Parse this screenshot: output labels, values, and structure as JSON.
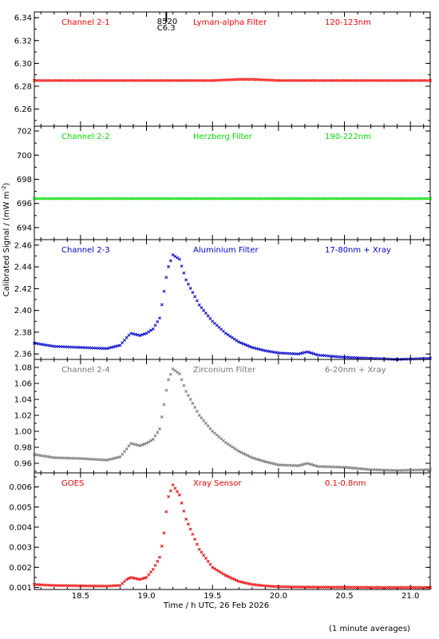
{
  "footnote": "(1 minute averages)",
  "chart_data": [
    {
      "type": "scatter",
      "channel": "Channel 2-1",
      "filter": "Lyman-alpha Filter",
      "band": "120-123nm",
      "color": "#ff0000",
      "ylim": [
        6.245,
        6.345
      ],
      "yticks": [
        6.26,
        6.28,
        6.3,
        6.32,
        6.34
      ],
      "yticklabels": [
        "6.26",
        "6.28",
        "6.30",
        "6.32",
        "6.34"
      ],
      "annotations": [
        {
          "text": "8520",
          "x": 19.08,
          "y": 6.3345
        },
        {
          "text": "C6.3",
          "x": 19.08,
          "y": 6.329
        }
      ],
      "markers": [
        {
          "x": 19.15,
          "y1": 6.345,
          "y2": 6.336
        }
      ],
      "series": [
        {
          "x": [
            18.15,
            18.5,
            19.0,
            19.5,
            19.7,
            19.8,
            20.0,
            20.5,
            21.0,
            21.15
          ],
          "y": [
            6.285,
            6.285,
            6.285,
            6.285,
            6.286,
            6.286,
            6.285,
            6.285,
            6.285,
            6.285
          ]
        }
      ]
    },
    {
      "type": "scatter",
      "channel": "Channel 2-2",
      "filter": "Herzberg Filter",
      "band": "190-222nm",
      "color": "#00dd00",
      "ylim": [
        693,
        702.4
      ],
      "yticks": [
        694,
        696,
        698,
        700,
        702
      ],
      "yticklabels": [
        "694",
        "696",
        "698",
        "700",
        "702"
      ],
      "series": [
        {
          "x": [
            18.15,
            18.5,
            19.0,
            19.5,
            20.0,
            20.5,
            21.0,
            21.15
          ],
          "y": [
            696.4,
            696.4,
            696.4,
            696.4,
            696.4,
            696.4,
            696.4,
            696.4
          ]
        }
      ]
    },
    {
      "type": "scatter",
      "channel": "Channel 2-3",
      "filter": "Aluminium Filter",
      "band": "17-80nm + Xray",
      "color": "#0000cc",
      "ylim": [
        2.355,
        2.465
      ],
      "yticks": [
        2.36,
        2.38,
        2.4,
        2.42,
        2.44,
        2.46
      ],
      "yticklabels": [
        "2.36",
        "2.38",
        "2.40",
        "2.42",
        "2.44",
        "2.46"
      ],
      "series": [
        {
          "x": [
            18.15,
            18.3,
            18.5,
            18.7,
            18.8,
            18.85,
            18.88,
            18.95,
            19.0,
            19.05,
            19.1,
            19.13,
            19.16,
            19.2,
            19.25,
            19.3,
            19.4,
            19.5,
            19.6,
            19.7,
            19.8,
            19.9,
            20.0,
            20.15,
            20.22,
            20.3,
            20.5,
            20.7,
            20.9,
            21.15
          ],
          "y": [
            2.37,
            2.367,
            2.366,
            2.365,
            2.368,
            2.375,
            2.379,
            2.377,
            2.379,
            2.383,
            2.393,
            2.415,
            2.438,
            2.451,
            2.447,
            2.428,
            2.405,
            2.39,
            2.379,
            2.371,
            2.366,
            2.363,
            2.361,
            2.36,
            2.362,
            2.359,
            2.357,
            2.356,
            2.355,
            2.356
          ]
        }
      ]
    },
    {
      "type": "scatter",
      "channel": "Channel 2-4",
      "filter": "Zirconium Filter",
      "band": "6-20nm + Xray",
      "color": "#777777",
      "ylim": [
        0.948,
        1.09
      ],
      "yticks": [
        0.96,
        0.98,
        1.0,
        1.02,
        1.04,
        1.06,
        1.08
      ],
      "yticklabels": [
        "0.96",
        "0.98",
        "1.00",
        "1.02",
        "1.04",
        "1.06",
        "1.08"
      ],
      "series": [
        {
          "x": [
            18.15,
            18.3,
            18.5,
            18.7,
            18.8,
            18.85,
            18.88,
            18.95,
            19.0,
            19.05,
            19.1,
            19.13,
            19.16,
            19.2,
            19.25,
            19.3,
            19.4,
            19.5,
            19.6,
            19.7,
            19.8,
            19.9,
            20.0,
            20.15,
            20.22,
            20.3,
            20.5,
            20.7,
            20.9,
            21.15
          ],
          "y": [
            0.971,
            0.967,
            0.966,
            0.964,
            0.968,
            0.978,
            0.985,
            0.982,
            0.985,
            0.99,
            1.003,
            1.03,
            1.062,
            1.078,
            1.072,
            1.05,
            1.02,
            1.0,
            0.986,
            0.975,
            0.967,
            0.962,
            0.958,
            0.957,
            0.96,
            0.956,
            0.955,
            0.952,
            0.951,
            0.952
          ]
        }
      ]
    },
    {
      "type": "scatter",
      "channel": "GOES",
      "filter": "Xray Sensor",
      "band": "0.1-0.8nm",
      "color": "#ee0000",
      "ylim": [
        0.0009,
        0.0067
      ],
      "yticks": [
        0.001,
        0.002,
        0.003,
        0.004,
        0.005,
        0.006
      ],
      "yticklabels": [
        "0.001",
        "0.002",
        "0.003",
        "0.004",
        "0.005",
        "0.006"
      ],
      "series": [
        {
          "x": [
            18.15,
            18.3,
            18.5,
            18.7,
            18.8,
            18.85,
            18.88,
            18.95,
            19.0,
            19.05,
            19.1,
            19.13,
            19.16,
            19.2,
            19.25,
            19.3,
            19.4,
            19.5,
            19.6,
            19.7,
            19.8,
            19.9,
            20.0,
            20.2,
            20.5,
            20.8,
            21.15
          ],
          "y": [
            0.00115,
            0.0011,
            0.00108,
            0.00107,
            0.0011,
            0.0014,
            0.0015,
            0.0014,
            0.0015,
            0.0019,
            0.0025,
            0.0035,
            0.0054,
            0.0061,
            0.0056,
            0.0044,
            0.0029,
            0.002,
            0.0016,
            0.0013,
            0.00115,
            0.00108,
            0.00104,
            0.00102,
            0.00101,
            0.001,
            0.001
          ]
        }
      ]
    }
  ],
  "x_axis": {
    "label": "Time / h UTC, 26 Feb 2026",
    "xlim": [
      18.15,
      21.15
    ],
    "ticks": [
      18.5,
      19.0,
      19.5,
      20.0,
      20.5,
      21.0
    ],
    "ticklabels": [
      "18.5",
      "19.0",
      "19.5",
      "20.0",
      "20.5",
      "21.0"
    ]
  },
  "y_axis": {
    "label": "Calibrated Signal / (mW m",
    "label_sup": "-2",
    "label_end": ")"
  }
}
